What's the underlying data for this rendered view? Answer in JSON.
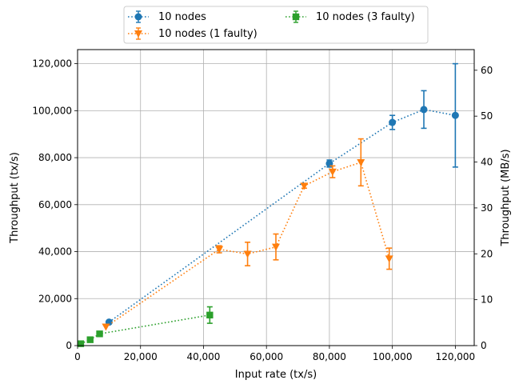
{
  "chart_data": {
    "type": "line",
    "xlabel": "Input rate (tx/s)",
    "ylabel": "Throughput (tx/s)",
    "ylabel_right": "Throughput (MB/s)",
    "xlim": [
      0,
      126000
    ],
    "ylim": [
      0,
      126000
    ],
    "ylim_right": [
      0,
      64.5
    ],
    "xticks": [
      0,
      20000,
      40000,
      60000,
      80000,
      100000,
      120000
    ],
    "xtick_labels": [
      "0",
      "20,000",
      "40,000",
      "60,000",
      "80,000",
      "100,000",
      "120,000"
    ],
    "yticks": [
      0,
      20000,
      40000,
      60000,
      80000,
      100000,
      120000
    ],
    "ytick_labels": [
      "0",
      "20,000",
      "40,000",
      "60,000",
      "80,000",
      "100,000",
      "120,000"
    ],
    "yticks_right": [
      0,
      10,
      20,
      30,
      40,
      50,
      60
    ],
    "ytick_labels_right": [
      "0",
      "10",
      "20",
      "30",
      "40",
      "50",
      "60"
    ],
    "grid": true,
    "legend_position": "top-center, outside plot",
    "series": [
      {
        "name": "10 nodes",
        "color": "#1f77b4",
        "marker": "circle",
        "points": [
          {
            "x": 10000,
            "y": 10000,
            "err": 0
          },
          {
            "x": 80000,
            "y": 77500,
            "err": 1500
          },
          {
            "x": 100000,
            "y": 95000,
            "err": 3000
          },
          {
            "x": 110000,
            "y": 100500,
            "err": 8000
          },
          {
            "x": 120000,
            "y": 98000,
            "err": 22000
          }
        ]
      },
      {
        "name": "10 nodes (1 faulty)",
        "color": "#ff7f0e",
        "marker": "triangle-down",
        "points": [
          {
            "x": 9000,
            "y": 8000,
            "err": 0
          },
          {
            "x": 45000,
            "y": 41000,
            "err": 1500
          },
          {
            "x": 54000,
            "y": 39000,
            "err": 5000
          },
          {
            "x": 63000,
            "y": 42000,
            "err": 5500
          },
          {
            "x": 72000,
            "y": 68000,
            "err": 1000
          },
          {
            "x": 81000,
            "y": 74000,
            "err": 2500
          },
          {
            "x": 90000,
            "y": 78000,
            "err": 10000
          },
          {
            "x": 99000,
            "y": 37000,
            "err": 4500
          }
        ]
      },
      {
        "name": "10 nodes (3 faulty)",
        "color": "#2ca02c",
        "marker": "square",
        "points": [
          {
            "x": 1000,
            "y": 800,
            "err": 0
          },
          {
            "x": 4000,
            "y": 2500,
            "err": 0
          },
          {
            "x": 7000,
            "y": 5000,
            "err": 0
          },
          {
            "x": 42000,
            "y": 13000,
            "err": 3500
          }
        ]
      }
    ]
  }
}
